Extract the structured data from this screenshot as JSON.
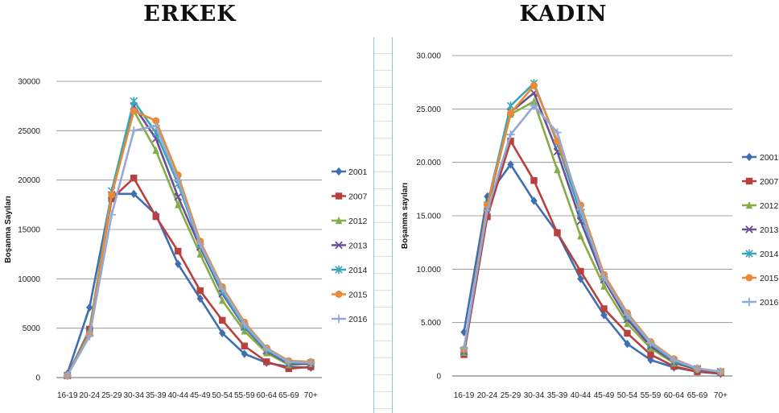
{
  "chart_data": [
    {
      "type": "line",
      "title": "ERKEK",
      "ylabel": "Boşanma Sayıları",
      "xlabel": "",
      "categories": [
        "16-19",
        "20-24",
        "25-29",
        "30-34",
        "35-39",
        "40-44",
        "45-49",
        "50-54",
        "55-59",
        "60-64",
        "65-69",
        "70+"
      ],
      "ylim": [
        0,
        30000
      ],
      "yticks": [
        0,
        5000,
        10000,
        15000,
        20000,
        25000,
        30000
      ],
      "ytick_labels": [
        "0",
        "5000",
        "10000",
        "15000",
        "20000",
        "25000",
        "30000"
      ],
      "grid": true,
      "legend": "right",
      "series": [
        {
          "name": "2001",
          "color": "#3f6fb0",
          "marker": "diamond",
          "values": [
            400,
            7100,
            18600,
            18600,
            16500,
            11500,
            8000,
            4500,
            2400,
            1500,
            1100,
            1000
          ]
        },
        {
          "name": "2007",
          "color": "#b8403d",
          "marker": "square",
          "values": [
            200,
            4900,
            18100,
            20200,
            16300,
            12800,
            8800,
            5800,
            3200,
            1600,
            900,
            1100
          ]
        },
        {
          "name": "2012",
          "color": "#86ad45",
          "marker": "triangle",
          "values": [
            200,
            4800,
            18600,
            27000,
            23000,
            17500,
            12500,
            7800,
            4700,
            2500,
            1300,
            1400
          ]
        },
        {
          "name": "2013",
          "color": "#6b4f95",
          "marker": "x",
          "values": [
            200,
            4600,
            18500,
            27500,
            24200,
            18300,
            13200,
            8500,
            5100,
            2700,
            1400,
            1400
          ]
        },
        {
          "name": "2014",
          "color": "#3ba3ba",
          "marker": "star",
          "values": [
            200,
            4500,
            18900,
            28000,
            24800,
            19600,
            13400,
            8700,
            5200,
            2800,
            1500,
            1500
          ]
        },
        {
          "name": "2015",
          "color": "#e98a34",
          "marker": "circle",
          "values": [
            200,
            4400,
            18500,
            27000,
            26000,
            20500,
            13800,
            9200,
            5600,
            3000,
            1700,
            1600
          ]
        },
        {
          "name": "2016",
          "color": "#93a9d6",
          "marker": "plus",
          "values": [
            200,
            4200,
            16500,
            25000,
            25500,
            20000,
            13500,
            9000,
            5400,
            2900,
            1600,
            1500
          ]
        }
      ]
    },
    {
      "type": "line",
      "title": "KADIN",
      "ylabel": "Boşanma sayıları",
      "xlabel": "",
      "categories": [
        "16-19",
        "20-24",
        "25-29",
        "30-34",
        "35-39",
        "40-44",
        "45-49",
        "50-54",
        "55-59",
        "60-64",
        "65-69",
        "70+"
      ],
      "ylim": [
        0,
        30000
      ],
      "yticks": [
        0,
        5000,
        10000,
        15000,
        20000,
        25000,
        30000
      ],
      "ytick_labels": [
        "0",
        "5.000",
        "10.000",
        "15.000",
        "20.000",
        "25.000",
        "30.000"
      ],
      "grid": true,
      "legend": "right",
      "series": [
        {
          "name": "2001",
          "color": "#3f6fb0",
          "marker": "diamond",
          "values": [
            4100,
            16800,
            19800,
            16400,
            13400,
            9100,
            5700,
            3000,
            1500,
            800,
            400,
            200
          ]
        },
        {
          "name": "2007",
          "color": "#b8403d",
          "marker": "square",
          "values": [
            2000,
            14900,
            22000,
            18300,
            13400,
            9800,
            6300,
            4000,
            2000,
            900,
            400,
            300
          ]
        },
        {
          "name": "2012",
          "color": "#86ad45",
          "marker": "triangle",
          "values": [
            2200,
            15900,
            24500,
            25700,
            19300,
            13100,
            8400,
            4900,
            2600,
            1200,
            600,
            400
          ]
        },
        {
          "name": "2013",
          "color": "#6b4f95",
          "marker": "x",
          "values": [
            2300,
            15800,
            24700,
            26500,
            21000,
            14500,
            9000,
            5300,
            2800,
            1300,
            600,
            400
          ]
        },
        {
          "name": "2014",
          "color": "#3ba3ba",
          "marker": "star",
          "values": [
            2400,
            16000,
            25300,
            27400,
            21800,
            15200,
            9300,
            5600,
            3000,
            1400,
            700,
            400
          ]
        },
        {
          "name": "2015",
          "color": "#e98a34",
          "marker": "circle",
          "values": [
            2500,
            16000,
            24600,
            27200,
            22000,
            16000,
            9500,
            5900,
            3200,
            1600,
            700,
            400
          ]
        },
        {
          "name": "2016",
          "color": "#93a9d6",
          "marker": "plus",
          "values": [
            2600,
            15500,
            22600,
            25300,
            22800,
            15600,
            9200,
            5700,
            3100,
            1500,
            700,
            400
          ]
        }
      ]
    }
  ]
}
